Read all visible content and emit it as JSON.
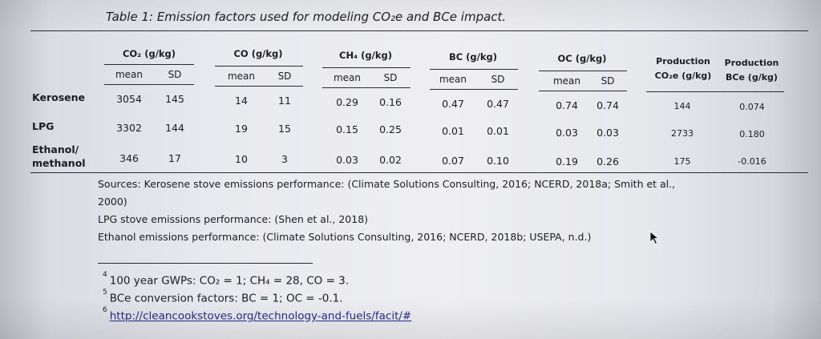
{
  "caption": "Table 1: Emission factors used for modeling CO₂e and BCe impact.",
  "groups": [
    "CO₂ (g/kg)",
    "CO (g/kg)",
    "CH₄ (g/kg)",
    "BC (g/kg)",
    "OC (g/kg)"
  ],
  "production_headers": [
    "Production CO₂e (g/kg)",
    "Production BCe (g/kg)"
  ],
  "sub_headers": {
    "mean": "mean",
    "sd": "SD"
  },
  "rows": [
    {
      "label": "Kerosene",
      "values": [
        "3054",
        "145",
        "14",
        "11",
        "0.29",
        "0.16",
        "0.47",
        "0.47",
        "0.74",
        "0.74"
      ],
      "prod": [
        "144",
        "0.074"
      ]
    },
    {
      "label": "LPG",
      "values": [
        "3302",
        "144",
        "19",
        "15",
        "0.15",
        "0.25",
        "0.01",
        "0.01",
        "0.03",
        "0.03"
      ],
      "prod": [
        "2733",
        "0.180"
      ]
    },
    {
      "label": "Ethanol/ methanol",
      "values": [
        "346",
        "17",
        "10",
        "3",
        "0.03",
        "0.02",
        "0.07",
        "0.10",
        "0.19",
        "0.26"
      ],
      "prod": [
        "175",
        "-0.016"
      ]
    }
  ],
  "sources": [
    "Sources: Kerosene stove emissions performance: (Climate Solutions Consulting, 2016; NCERD, 2018a; Smith et al.,",
    "2000)",
    "LPG stove emissions performance: (Shen et al., 2018)",
    "Ethanol emissions performance: (Climate Solutions Consulting, 2016; NCERD, 2018b; USEPA, n.d.)"
  ],
  "footnotes": [
    {
      "mark": "4",
      "text": "100 year GWPs: CO₂ = 1; CH₄ = 28, CO = 3."
    },
    {
      "mark": "5",
      "text": "BCe conversion factors: BC = 1; OC = -0.1."
    },
    {
      "mark": "6",
      "text": "http://cleancookstoves.org/technology-and-fuels/facit/#"
    }
  ]
}
